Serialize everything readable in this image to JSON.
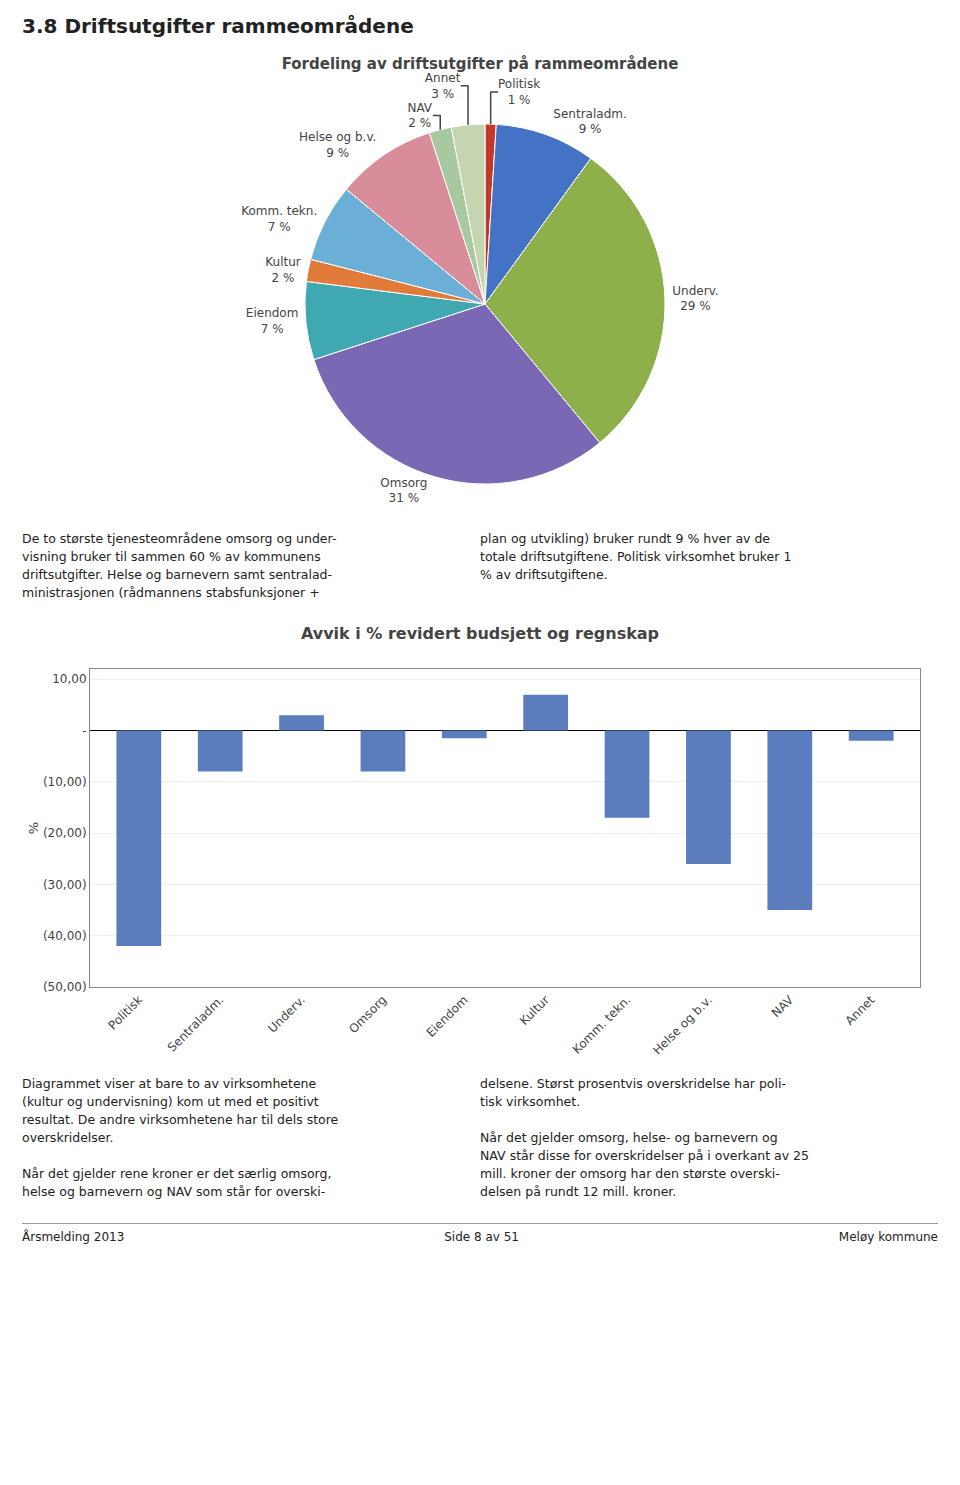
{
  "page_title": "3.8 Driftsutgifter rammeområdene",
  "text_blocks": [
    [
      "De to største tjenesteområdene omsorg og under-\nvisning bruker til sammen 60 % av kommunens\ndriftsutgifter. Helse og barnevern samt sentralad-\nministrasjonen (rådmannens stabsfunksjoner +",
      "plan og utvikling) bruker rundt 9 % hver av de\ntotale driftsutgiftene. Politisk virksomhet bruker 1\n% av driftsutgiftene."
    ],
    [
      "Diagrammet viser at bare to av virksomhetene\n(kultur og undervisning) kom ut med et positivt\nresultat. De andre virksomhetene har til dels store\noverskridelser.\n\nNår det gjelder rene kroner er det særlig omsorg,\nhelse og barnevern og NAV som står for overski-",
      "delsene. Størst prosentvis overskridelse har poli-\ntisk virksomhet.\n\nNår det gjelder omsorg, helse- og barnevern og\nNAV står disse for overskridelser på i overkant av 25\nmill. kroner der omsorg har den største overski-\ndelsen på rundt 12 mill. kroner."
    ]
  ],
  "footer": [
    "Årsmelding 2013",
    "Side 8 av 51",
    "Meløy kommune"
  ],
  "chart_data": [
    {
      "type": "pie",
      "title": "Fordeling av driftsutgifter på rammeområdene",
      "categories": [
        "Politisk",
        "Sentraladm.",
        "Underv.",
        "Omsorg",
        "Eiendom",
        "Kultur",
        "Komm. tekn.",
        "Helse og b.v.",
        "NAV",
        "Annet"
      ],
      "values": [
        1,
        9,
        29,
        31,
        7,
        2,
        7,
        9,
        2,
        3
      ],
      "value_labels": [
        "1 %",
        "9 %",
        "29 %",
        "31 %",
        "7 %",
        "2 %",
        "7 %",
        "9 %",
        "2 %",
        "3 %"
      ],
      "colors": [
        "#c0392b",
        "#4472c4",
        "#8db04a",
        "#7b68b5",
        "#3fa8b0",
        "#e07b39",
        "#6baed6",
        "#d98c9a",
        "#a8c8a0",
        "#c5d5b0"
      ]
    },
    {
      "type": "bar",
      "title": "Avvik i % revidert budsjett og regnskap",
      "categories": [
        "Politisk",
        "Sentraladm.",
        "Underv.",
        "Omsorg",
        "Eiendom",
        "Kultur",
        "Komm. tekn.",
        "Helse og b.v.",
        "NAV",
        "Annet"
      ],
      "values": [
        -42.0,
        -8.0,
        3.0,
        -8.0,
        -1.5,
        7.0,
        -17.0,
        -26.0,
        -35.0,
        -2.0
      ],
      "color": "#5b7dbe",
      "ylim": [
        -50,
        12
      ],
      "yticks": [
        {
          "value": 10,
          "label": "10,00"
        },
        {
          "value": 0,
          "label": "-"
        },
        {
          "value": -10,
          "label": "(10,00)"
        },
        {
          "value": -20,
          "label": "(20,00)"
        },
        {
          "value": -30,
          "label": "(30,00)"
        },
        {
          "value": -40,
          "label": "(40,00)"
        },
        {
          "value": -50,
          "label": "(50,00)"
        }
      ],
      "ylabel": "%",
      "grid": true
    }
  ]
}
